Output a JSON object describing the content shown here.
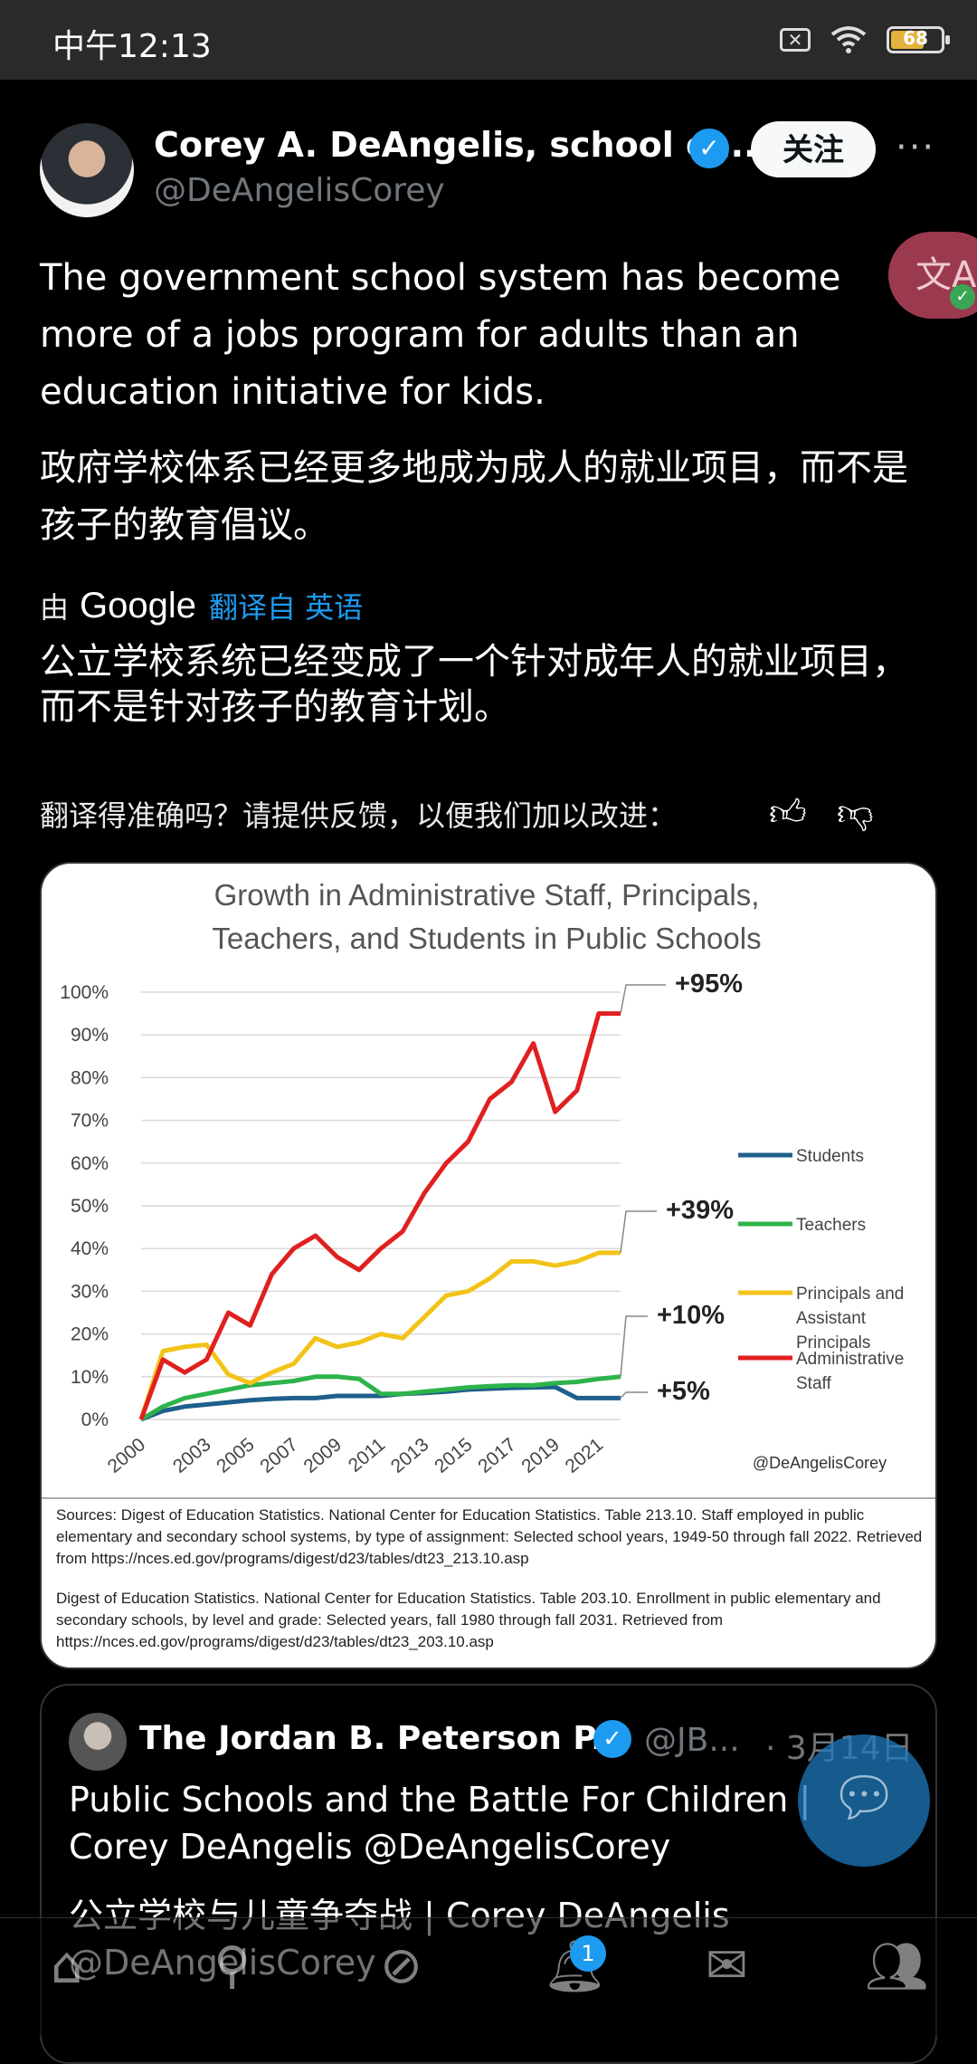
{
  "status_bar": {
    "time": "中午12:13",
    "battery": "68",
    "sim_icon": "sim-off-icon",
    "wifi_icon": "wifi-icon"
  },
  "author": {
    "name": "Corey A. DeAngelis, school ch...",
    "handle": "@DeAngelisCorey",
    "verified_icon": "verified-badge-icon",
    "follow_label": "关注",
    "more_label": "···"
  },
  "translate_fab": {
    "label": "文A"
  },
  "tweet": {
    "text": "The government school system has become more of a jobs program for adults than an education initiative for kids.",
    "translation": "政府学校体系已经更多地成为成人的就业项目，而不是孩子的教育倡议。",
    "translated_by": "由",
    "google": "Google",
    "translated_from": "翻译自 英语",
    "quote_translation": "公立学校系统已经变成了一个针对成年人的就业项目，而不是针对孩子的教育计划。",
    "feedback_prompt": "翻译得准确吗？请提供反馈，以便我们加以改进："
  },
  "chart_card": {
    "sources_1": "Sources: Digest of Education Statistics. National Center for Education Statistics. Table 213.10. Staff employed in public elementary and secondary school systems, by type of assignment: Selected school years, 1949-50 through fall 2022. Retrieved from https://nces.ed.gov/programs/digest/d23/tables/dt23_213.10.asp",
    "sources_2": "Digest of Education Statistics. National Center for Education Statistics. Table 203.10. Enrollment in public elementary and secondary schools, by level and grade: Selected years, fall 1980 through fall 2031. Retrieved from https://nces.ed.gov/programs/digest/d23/tables/dt23_203.10.asp"
  },
  "chart_data": {
    "type": "line",
    "title": "Growth in Administrative Staff, Principals, Teachers, and Students in Public Schools",
    "watermark": "@DeAngelisCorey",
    "x_tick_labels": [
      "2000",
      "2003",
      "2005",
      "2007",
      "2009",
      "2011",
      "2013",
      "2015",
      "2017",
      "2019",
      "2021"
    ],
    "y_tick_labels": [
      "0%",
      "10%",
      "20%",
      "30%",
      "40%",
      "50%",
      "60%",
      "70%",
      "80%",
      "90%",
      "100%"
    ],
    "ylim": [
      0,
      100
    ],
    "grid": true,
    "legend_position": "right",
    "x": [
      2000,
      2001,
      2002,
      2003,
      2004,
      2005,
      2006,
      2007,
      2008,
      2009,
      2010,
      2011,
      2012,
      2013,
      2014,
      2015,
      2016,
      2017,
      2018,
      2019,
      2020,
      2021,
      2022
    ],
    "series": [
      {
        "name": "Students",
        "color": "#1f5f8b",
        "values": [
          0,
          2,
          3,
          3.5,
          4,
          4.5,
          4.8,
          5,
          5,
          5.5,
          5.5,
          5.5,
          6,
          6.2,
          6.5,
          7,
          7.2,
          7.4,
          7.5,
          7.6,
          5,
          5,
          5
        ]
      },
      {
        "name": "Teachers",
        "color": "#2db34a",
        "values": [
          0,
          3,
          5,
          6,
          7,
          8,
          8.5,
          9,
          10,
          10,
          9.5,
          6,
          6,
          6.5,
          7,
          7.5,
          7.8,
          8,
          8,
          8.5,
          8.8,
          9.5,
          10
        ]
      },
      {
        "name": "Principals and Assistant Principals",
        "color": "#f2c318",
        "values": [
          0,
          16,
          17,
          17.5,
          10.5,
          8.5,
          11,
          13,
          19,
          17,
          18,
          20,
          19,
          24,
          29,
          30,
          33,
          37,
          37,
          36,
          37,
          39,
          39
        ]
      },
      {
        "name": "Administrative Staff",
        "color": "#e02020",
        "values": [
          0,
          14,
          11,
          14,
          25,
          22,
          34,
          40,
          43,
          38,
          35,
          40,
          44,
          53,
          60,
          65,
          75,
          79,
          88,
          72,
          77,
          95,
          95
        ]
      }
    ],
    "annotations": [
      "+95%",
      "+39%",
      "+10%",
      "+5%"
    ]
  },
  "quoted_tweet": {
    "name": "The Jordan B. Peterson P...",
    "handle": "@JB...",
    "date": "· 3月14日",
    "text": "Public Schools and the Battle For Children | Corey DeAngelis @DeAngelisCorey",
    "translation": "公立学校与儿童争夺战 | Corey DeAngelis @DeAngelisCorey"
  },
  "bottom_nav": {
    "notifications_badge": "1"
  }
}
